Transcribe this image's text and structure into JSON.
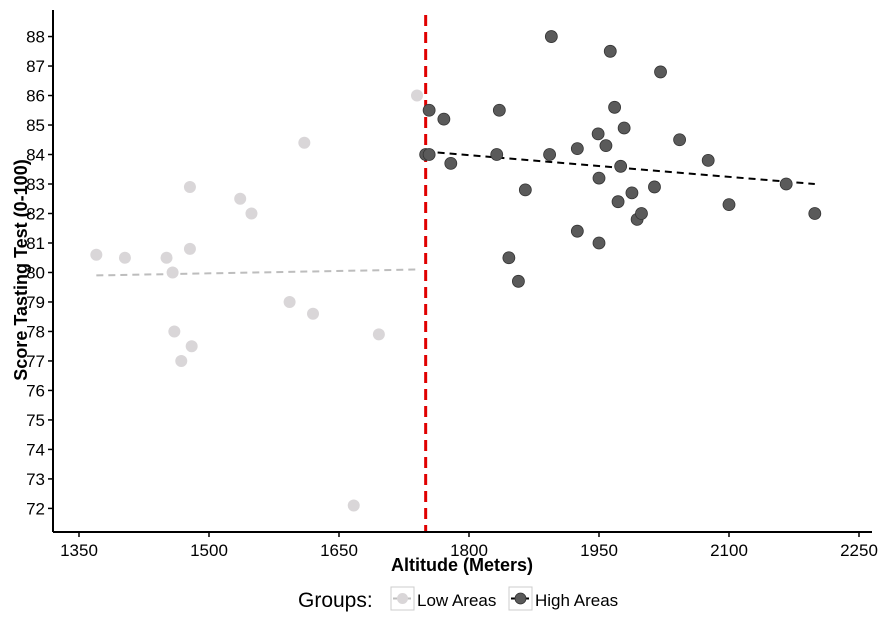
{
  "chart_data": {
    "type": "scatter",
    "title": "",
    "xlabel": "Altitude (Meters)",
    "ylabel": "Score Tasting Test (0-100)",
    "xlim": [
      1320,
      2265
    ],
    "ylim": [
      71.2,
      88.9
    ],
    "xticks": [
      "1350",
      "1500",
      "1650",
      "1800",
      "1950",
      "2100",
      "2250"
    ],
    "yticks": [
      "72",
      "73",
      "74",
      "75",
      "76",
      "77",
      "78",
      "79",
      "80",
      "81",
      "82",
      "83",
      "84",
      "85",
      "86",
      "87",
      "88"
    ],
    "grid": false,
    "threshold": {
      "x": 1750,
      "color": "#e00000",
      "style": "dashed"
    },
    "legend": {
      "title": "Groups:",
      "placement": "bottom"
    },
    "series": [
      {
        "name": "Low Areas",
        "color": "#d9d6d8",
        "points": [
          [
            1370,
            80.6
          ],
          [
            1403,
            80.5
          ],
          [
            1451,
            80.5
          ],
          [
            1458,
            80.0
          ],
          [
            1478,
            82.9
          ],
          [
            1478,
            80.8
          ],
          [
            1536,
            82.5
          ],
          [
            1549,
            82.0
          ],
          [
            1610,
            84.4
          ],
          [
            1740,
            86.0
          ],
          [
            1460,
            78.0
          ],
          [
            1480,
            77.5
          ],
          [
            1468,
            77.0
          ],
          [
            1593,
            79.0
          ],
          [
            1620,
            78.6
          ],
          [
            1696,
            77.9
          ],
          [
            1667,
            72.1
          ]
        ],
        "trend": [
          [
            1370,
            79.9
          ],
          [
            1740,
            80.1
          ]
        ]
      },
      {
        "name": "High Areas",
        "color": "#5a5a5a",
        "points": [
          [
            1750,
            84.0
          ],
          [
            1754,
            84.0
          ],
          [
            1754,
            85.5
          ],
          [
            1771,
            85.2
          ],
          [
            1779,
            83.7
          ],
          [
            1832,
            84.0
          ],
          [
            1835,
            85.5
          ],
          [
            1846,
            80.5
          ],
          [
            1857,
            79.7
          ],
          [
            1865,
            82.8
          ],
          [
            1895,
            88.0
          ],
          [
            1893,
            84.0
          ],
          [
            1925,
            84.2
          ],
          [
            1925,
            81.4
          ],
          [
            1949,
            84.7
          ],
          [
            1950,
            83.2
          ],
          [
            1950,
            81.0
          ],
          [
            1958,
            84.3
          ],
          [
            1963,
            87.5
          ],
          [
            1968,
            85.6
          ],
          [
            1972,
            82.4
          ],
          [
            1975,
            83.6
          ],
          [
            1979,
            84.9
          ],
          [
            1988,
            82.7
          ],
          [
            1994,
            81.8
          ],
          [
            1999,
            82.0
          ],
          [
            2014,
            82.9
          ],
          [
            2021,
            86.8
          ],
          [
            2043,
            84.5
          ],
          [
            2076,
            83.8
          ],
          [
            2100,
            82.3
          ],
          [
            2166,
            83.0
          ],
          [
            2199,
            82.0
          ]
        ],
        "trend": [
          [
            1750,
            84.1
          ],
          [
            2199,
            83.0
          ]
        ]
      }
    ]
  }
}
